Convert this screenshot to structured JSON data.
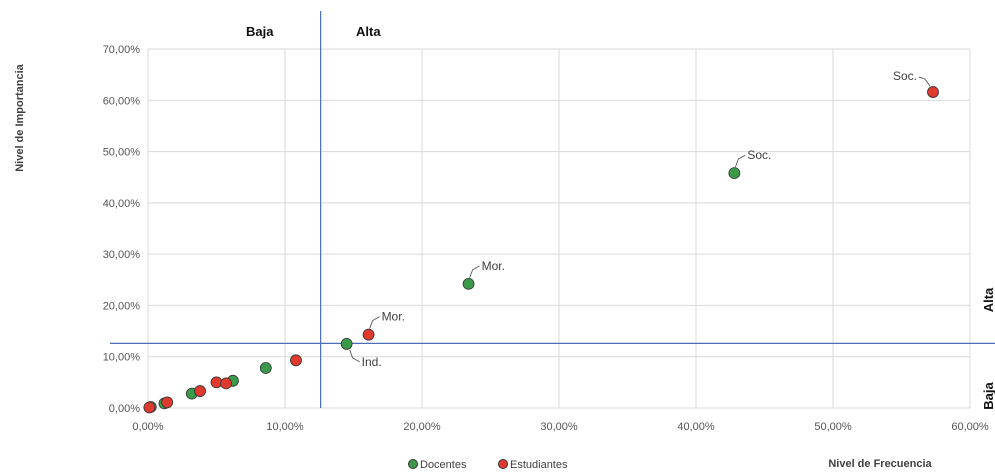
{
  "chart_data": {
    "type": "scatter",
    "xlabel": "Nivel de Frecuencia",
    "ylabel": "Nivel de Importancia",
    "xlim": [
      0,
      60
    ],
    "ylim": [
      0,
      70
    ],
    "x_ticks": [
      "0,00%",
      "10,00%",
      "20,00%",
      "30,00%",
      "40,00%",
      "50,00%",
      "60,00%"
    ],
    "y_ticks": [
      "0,00%",
      "10,00%",
      "20,00%",
      "30,00%",
      "40,00%",
      "50,00%",
      "60,00%",
      "70,00%"
    ],
    "grid": true,
    "legend_position": "bottom",
    "threshold_x": 12.6,
    "threshold_y": 12.6,
    "quadrant_labels": {
      "x_low": "Baja",
      "x_high": "Alta",
      "y_low": "Baja",
      "y_high": "Alta"
    },
    "series": [
      {
        "name": "Docentes",
        "color": "#3a9a4a",
        "points": [
          {
            "x": 0.2,
            "y": 0.2
          },
          {
            "x": 1.2,
            "y": 0.9
          },
          {
            "x": 3.2,
            "y": 2.8
          },
          {
            "x": 6.2,
            "y": 5.3
          },
          {
            "x": 8.6,
            "y": 7.8
          },
          {
            "x": 14.5,
            "y": 12.5,
            "label": "Ind."
          },
          {
            "x": 23.4,
            "y": 24.2,
            "label": "Mor."
          },
          {
            "x": 42.8,
            "y": 45.8,
            "label": "Soc."
          }
        ]
      },
      {
        "name": "Estudiantes",
        "color": "#e03a2e",
        "points": [
          {
            "x": 0.1,
            "y": 0.1
          },
          {
            "x": 1.4,
            "y": 1.1
          },
          {
            "x": 3.8,
            "y": 3.3
          },
          {
            "x": 5.0,
            "y": 5.0
          },
          {
            "x": 5.7,
            "y": 4.8
          },
          {
            "x": 10.8,
            "y": 9.3
          },
          {
            "x": 16.1,
            "y": 14.3,
            "label": "Mor."
          },
          {
            "x": 57.3,
            "y": 61.6,
            "label": "Soc."
          }
        ]
      }
    ]
  }
}
